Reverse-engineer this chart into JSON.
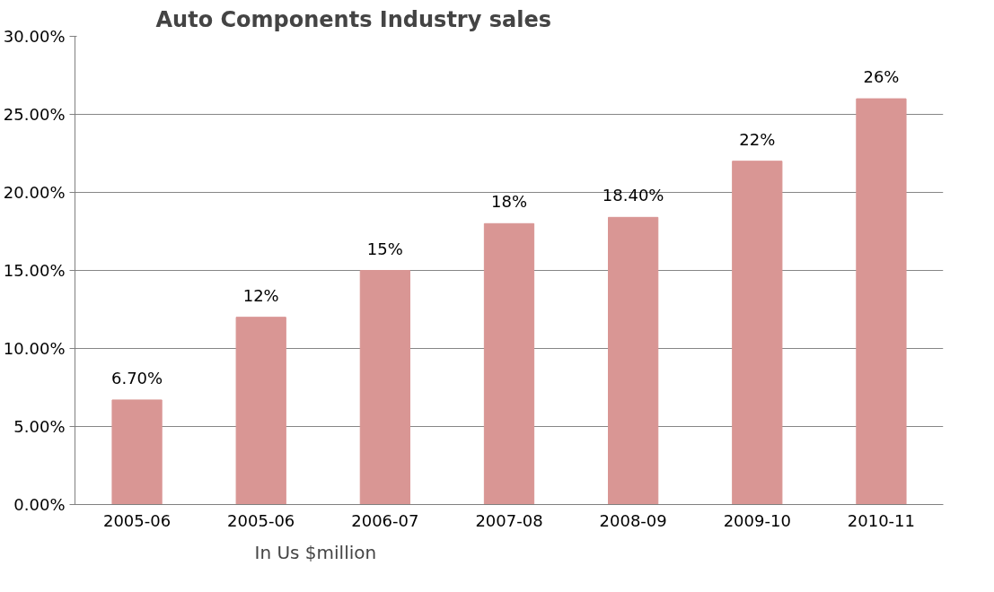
{
  "chart_data": {
    "type": "bar",
    "title": "Auto Components Industry sales",
    "categories": [
      "2005-06",
      "2005-06",
      "2006-07",
      "2007-08",
      "2008-09",
      "2009-10",
      "2010-11"
    ],
    "values": [
      6.7,
      12,
      15,
      18,
      18.4,
      22,
      26
    ],
    "value_labels": [
      "6.70%",
      "12%",
      "15%",
      "18%",
      "18.40%",
      "22%",
      "26%"
    ],
    "color": "#d99694",
    "ylim": [
      0,
      30
    ],
    "yticks": [
      {
        "value": 0,
        "label": "0.00%"
      },
      {
        "value": 5,
        "label": "5.00%"
      },
      {
        "value": 10,
        "label": "10.00%"
      },
      {
        "value": 15,
        "label": "15.00%"
      },
      {
        "value": 20,
        "label": "20.00%"
      },
      {
        "value": 25,
        "label": "25.00%"
      },
      {
        "value": 30,
        "label": "30.00%"
      }
    ],
    "grid": "y",
    "annotations": [
      "In Us $million"
    ]
  }
}
